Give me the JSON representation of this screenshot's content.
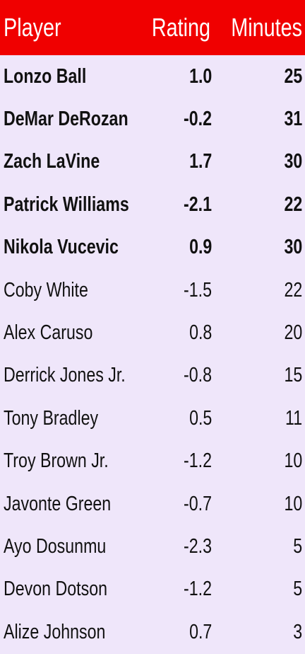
{
  "table": {
    "header": [
      "Player",
      "Rating",
      "Minutes"
    ],
    "rows": [
      [
        "Lonzo Ball",
        "1.0",
        25
      ],
      [
        "DeMar DeRozan",
        "-0.2",
        31
      ],
      [
        "Zach LaVine",
        "1.7",
        30
      ],
      [
        "Patrick Williams",
        "-2.1",
        22
      ],
      [
        "Nikola Vucevic",
        "0.9",
        30
      ],
      [
        "Coby White",
        "-1.5",
        22
      ],
      [
        "Alex Caruso",
        "0.8",
        20
      ],
      [
        "Derrick Jones Jr.",
        "-0.8",
        15
      ],
      [
        "Tony Bradley",
        "0.5",
        11
      ],
      [
        "Troy Brown Jr.",
        "-1.2",
        10
      ],
      [
        "Javonte Green",
        "-0.7",
        10
      ],
      [
        "Ayo Dosunmu",
        "-2.3",
        5
      ],
      [
        "Devon Dotson",
        "-1.2",
        5
      ],
      [
        "Alize Johnson",
        "0.7",
        3
      ]
    ]
  }
}
